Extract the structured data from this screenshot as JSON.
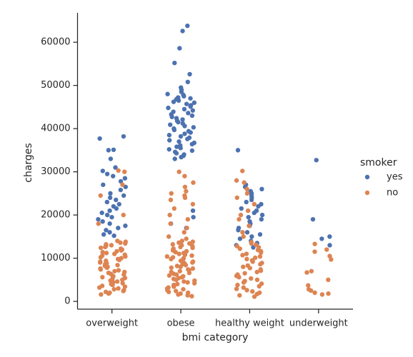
{
  "chart_data": {
    "type": "strip",
    "x_label": "bmi category",
    "y_label": "charges",
    "categories": [
      "overweight",
      "obese",
      "healthy weight",
      "underweight"
    ],
    "ylim": [
      -1800,
      66800
    ],
    "yticks": [
      0,
      10000,
      20000,
      30000,
      40000,
      50000,
      60000
    ],
    "legend_title": "smoker",
    "legend_position": "right",
    "series": [
      {
        "name": "yes",
        "color": "#4c72b0",
        "values": [
          [
            38200,
            37700,
            35100,
            35000,
            33000,
            31000,
            30200,
            29500,
            29000,
            28500,
            27800,
            27000,
            26500,
            25800,
            25000,
            24500,
            24000,
            23500,
            23000,
            22500,
            22000,
            21500,
            21000,
            20500,
            20000,
            19500,
            19000,
            18500,
            18000,
            17500,
            17000,
            16500,
            16000,
            15500,
            15200
          ],
          [
            63800,
            62600,
            58600,
            55200,
            52600,
            50800,
            49500,
            49000,
            48500,
            48000,
            47800,
            47500,
            47200,
            47000,
            46800,
            46500,
            46200,
            46000,
            45700,
            45400,
            45100,
            44800,
            44500,
            44200,
            43900,
            43600,
            43300,
            43000,
            42700,
            42400,
            42100,
            41800,
            41500,
            41200,
            40900,
            40600,
            40300,
            40000,
            39700,
            39400,
            39100,
            38800,
            38500,
            38200,
            37900,
            37600,
            37300,
            37000,
            36700,
            36400,
            36100,
            35800,
            35500,
            35200,
            34900,
            34600,
            34300,
            34000,
            33700,
            33400,
            33000,
            21000,
            19500,
            18000,
            17000
          ],
          [
            35000,
            27000,
            26500,
            26000,
            25500,
            25000,
            24500,
            24000,
            23500,
            23000,
            22500,
            22000,
            21500,
            21000,
            20500,
            20000,
            19500,
            19000,
            18500,
            18000,
            17500,
            17000,
            16500,
            16000,
            15500,
            15000,
            14500,
            14000,
            13500,
            13000,
            12500
          ],
          [
            32700,
            19000,
            15000,
            14500,
            13000
          ]
        ]
      },
      {
        "name": "no",
        "color": "#dd8452",
        "values": [
          [
            30300,
            30000,
            27000,
            24500,
            20000,
            18000,
            1600,
            1800,
            2000,
            2200,
            2400,
            2600,
            2800,
            3000,
            3200,
            3400,
            3600,
            3800,
            4000,
            4200,
            4400,
            4600,
            4800,
            5000,
            5200,
            5400,
            5600,
            5800,
            6000,
            6200,
            6400,
            6600,
            6800,
            7000,
            7200,
            7400,
            7600,
            7800,
            8000,
            8200,
            8400,
            8600,
            8800,
            9000,
            9200,
            9400,
            9600,
            9800,
            10000,
            10200,
            10400,
            10600,
            10800,
            11000,
            11200,
            11400,
            11600,
            11800,
            12000,
            12200,
            12400,
            12600,
            12800,
            13000,
            13200,
            13400,
            13600,
            13800,
            14000
          ],
          [
            30000,
            29000,
            27500,
            26500,
            25500,
            25000,
            24500,
            24000,
            23500,
            22500,
            21500,
            20000,
            19000,
            18000,
            17000,
            16000,
            15000,
            14500,
            1200,
            1400,
            1600,
            1800,
            2000,
            2200,
            2400,
            2600,
            2800,
            3000,
            3200,
            3400,
            3600,
            3800,
            4000,
            4200,
            4400,
            4600,
            4800,
            5000,
            5200,
            5400,
            5600,
            5800,
            6000,
            6200,
            6400,
            6600,
            6800,
            7000,
            7200,
            7400,
            7600,
            7800,
            8000,
            8200,
            8400,
            8600,
            8800,
            9000,
            9200,
            9400,
            9600,
            9800,
            10000,
            10200,
            10400,
            10600,
            10800,
            11000,
            11200,
            11400,
            11600,
            11800,
            12000,
            12200,
            12400,
            12600,
            12800,
            13000,
            13200,
            13400,
            13600,
            13800,
            14000
          ],
          [
            30200,
            28000,
            27500,
            26000,
            25000,
            24000,
            22500,
            21000,
            20000,
            19000,
            17500,
            16000,
            15000,
            1100,
            1400,
            1700,
            2000,
            2300,
            2600,
            2900,
            3200,
            3500,
            3800,
            4100,
            4400,
            4700,
            5000,
            5300,
            5600,
            5900,
            6200,
            6500,
            6800,
            7100,
            7400,
            7700,
            8000,
            8300,
            8600,
            8900,
            9200,
            9500,
            9800,
            10100,
            10400,
            10700,
            11000,
            11300,
            11600,
            11900,
            12200,
            12500,
            12800,
            13100,
            13400,
            13700
          ],
          [
            13300,
            12000,
            11500,
            10500,
            9700,
            7000,
            6700,
            5000,
            3700,
            2800,
            2500,
            2000,
            1800,
            1600
          ]
        ]
      }
    ]
  }
}
